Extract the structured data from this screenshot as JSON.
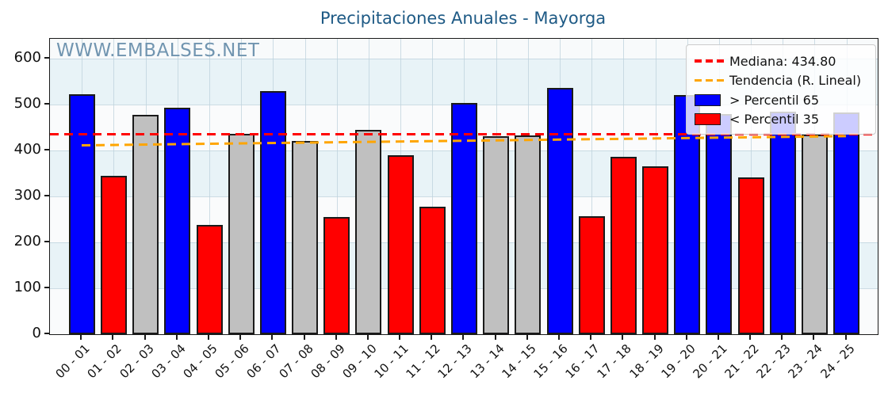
{
  "watermark": {
    "text": "WWW.EMBALSES.NET"
  },
  "legend": {
    "median_label": "Mediana: 434.80",
    "trend_label": "Tendencia (R. Lineal)",
    "above_label": "> Percentil 65",
    "below_label": "< Percentil 35"
  },
  "colors": {
    "above": "#0000ff",
    "below": "#ff0000",
    "mid": "#c0c0c0",
    "bar_edge": "#1a1a1a",
    "median_line": "#ff0000",
    "trend_line": "#ffa500",
    "title": "#1e5a85",
    "watermark": "#7195b0"
  },
  "chart_data": {
    "type": "bar",
    "title": "Precipitaciones Anuales - Mayorga",
    "categories": [
      "00 - 01",
      "01 - 02",
      "02 - 03",
      "03 - 04",
      "04 - 05",
      "05 - 06",
      "06 - 07",
      "07 - 08",
      "08 - 09",
      "09 - 10",
      "10 - 11",
      "11 - 12",
      "12 - 13",
      "13 - 14",
      "14 - 15",
      "15 - 16",
      "16 - 17",
      "17 - 18",
      "18 - 19",
      "19 - 20",
      "20 - 21",
      "21 - 22",
      "22 - 23",
      "23 - 24",
      "24 - 25"
    ],
    "values": [
      522,
      345,
      477,
      493,
      238,
      437,
      530,
      420,
      255,
      445,
      389,
      277,
      503,
      431,
      432,
      536,
      257,
      386,
      365,
      520,
      480,
      341,
      485,
      435,
      483
    ],
    "classes": [
      "above",
      "below",
      "mid",
      "above",
      "below",
      "mid",
      "above",
      "mid",
      "below",
      "mid",
      "below",
      "below",
      "above",
      "mid",
      "mid",
      "above",
      "below",
      "below",
      "below",
      "above",
      "above",
      "below",
      "above",
      "mid",
      "above"
    ],
    "median": 434.8,
    "trend": {
      "start": 411,
      "end": 431
    },
    "ylim": [
      0,
      643
    ],
    "yticks": [
      0,
      100,
      200,
      300,
      400,
      500,
      600
    ],
    "xlabel": "",
    "ylabel": "",
    "grid": true,
    "legend_position": "upper right"
  }
}
